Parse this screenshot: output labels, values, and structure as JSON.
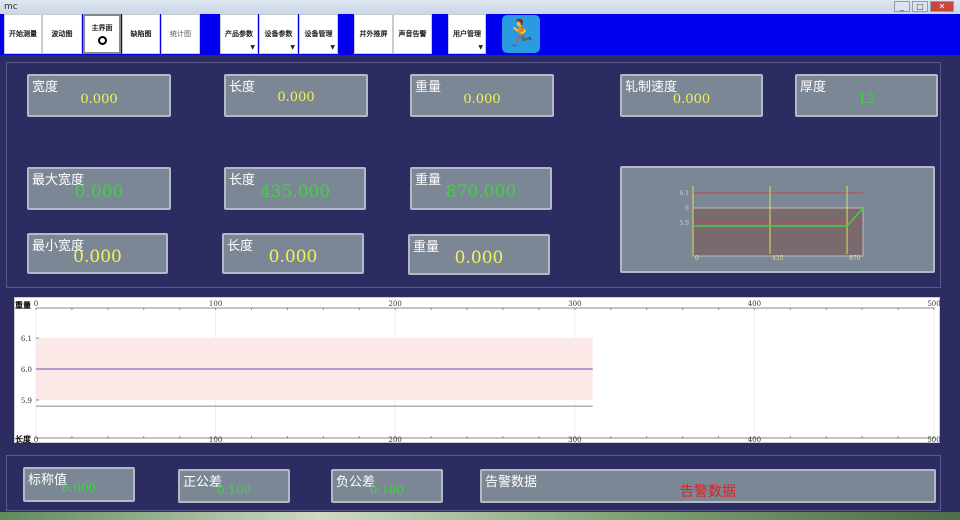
{
  "window": {
    "title": "mc"
  },
  "toolbar": {
    "buttons": [
      "开始测量",
      "波动图",
      "主界面",
      "缺陷图",
      "统计图",
      "产品参数",
      "设备参数",
      "设备管理",
      "并外推屏",
      "声音告警",
      "用户管理"
    ],
    "accent": "#0000ee"
  },
  "row1": [
    {
      "label": "宽度",
      "value": "0.000"
    },
    {
      "label": "长度",
      "value": "0.000"
    },
    {
      "label": "重量",
      "value": "0.000"
    },
    {
      "label": "轧制速度",
      "value": "0.000"
    },
    {
      "label": "厚度",
      "value": "12"
    }
  ],
  "row2": [
    {
      "label": "最大宽度",
      "value": "0.000"
    },
    {
      "label": "长度",
      "value": "435.000"
    },
    {
      "label": "重量",
      "value": "870.000"
    }
  ],
  "row3": [
    {
      "label": "最小宽度",
      "value": "0.000"
    },
    {
      "label": "长度",
      "value": "0.000"
    },
    {
      "label": "重量",
      "value": "0.000"
    }
  ],
  "bottom": [
    {
      "label": "标称值",
      "value": "6.000"
    },
    {
      "label": "正公差",
      "value": "0.100"
    },
    {
      "label": "负公差",
      "value": "0.100"
    },
    {
      "label": "告警数据",
      "value": "告警数据"
    }
  ],
  "chart_data": [
    {
      "type": "line",
      "xlabel_top": "重量",
      "xlabel_bottom": "长度",
      "xlim": [
        0,
        500
      ],
      "x_ticks": [
        "0",
        "100",
        "200",
        "300",
        "400",
        "500"
      ],
      "y_ticks": [
        "6.1",
        "6.0",
        "5.9"
      ],
      "ylim": [
        5.8,
        6.17
      ],
      "band": {
        "upper": 6.1,
        "lower": 5.9,
        "x_end": 310
      },
      "series": [
        {
          "x": [
            0,
            310
          ],
          "y": [
            6.0,
            6.0
          ],
          "color": "#8a6fb8"
        },
        {
          "x": [
            0,
            310
          ],
          "y": [
            5.88,
            5.88
          ],
          "color": "#999999"
        }
      ],
      "grid": true
    },
    {
      "type": "line",
      "x_ticks": [
        "0",
        "435",
        "870"
      ],
      "y_ticks": [
        "6.1",
        "6",
        "5.9"
      ],
      "series": [
        {
          "x": [
            0,
            870,
            960
          ],
          "y": [
            5.88,
            5.88,
            6.0
          ],
          "color": "#3ed43e"
        }
      ]
    }
  ]
}
